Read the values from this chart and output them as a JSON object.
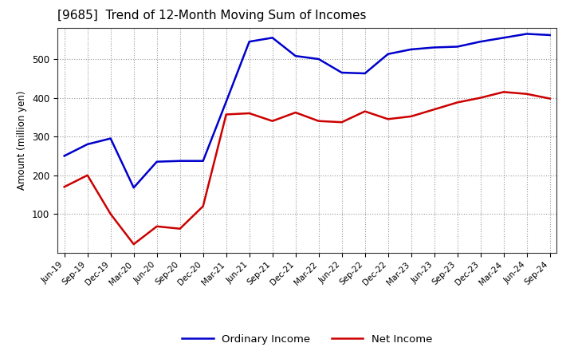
{
  "title": "[9685]  Trend of 12-Month Moving Sum of Incomes",
  "ylabel": "Amount (million yen)",
  "x_labels": [
    "Jun-19",
    "Sep-19",
    "Dec-19",
    "Mar-20",
    "Jun-20",
    "Sep-20",
    "Dec-20",
    "Mar-21",
    "Jun-21",
    "Sep-21",
    "Dec-21",
    "Mar-22",
    "Jun-22",
    "Sep-22",
    "Dec-22",
    "Mar-23",
    "Jun-23",
    "Sep-23",
    "Dec-23",
    "Mar-24",
    "Jun-24",
    "Sep-24"
  ],
  "ordinary_income": [
    250,
    280,
    295,
    168,
    235,
    237,
    237,
    390,
    545,
    555,
    508,
    500,
    465,
    463,
    513,
    525,
    530,
    532,
    545,
    555,
    565,
    562
  ],
  "net_income": [
    170,
    200,
    100,
    22,
    68,
    62,
    120,
    357,
    360,
    340,
    362,
    340,
    337,
    365,
    345,
    352,
    370,
    388,
    400,
    415,
    410,
    398
  ],
  "ordinary_color": "#0000cc",
  "net_color": "#cc0000",
  "ylim": [
    0,
    580
  ],
  "yticks": [
    100,
    200,
    300,
    400,
    500
  ],
  "background_color": "#ffffff",
  "grid_color": "#999999"
}
